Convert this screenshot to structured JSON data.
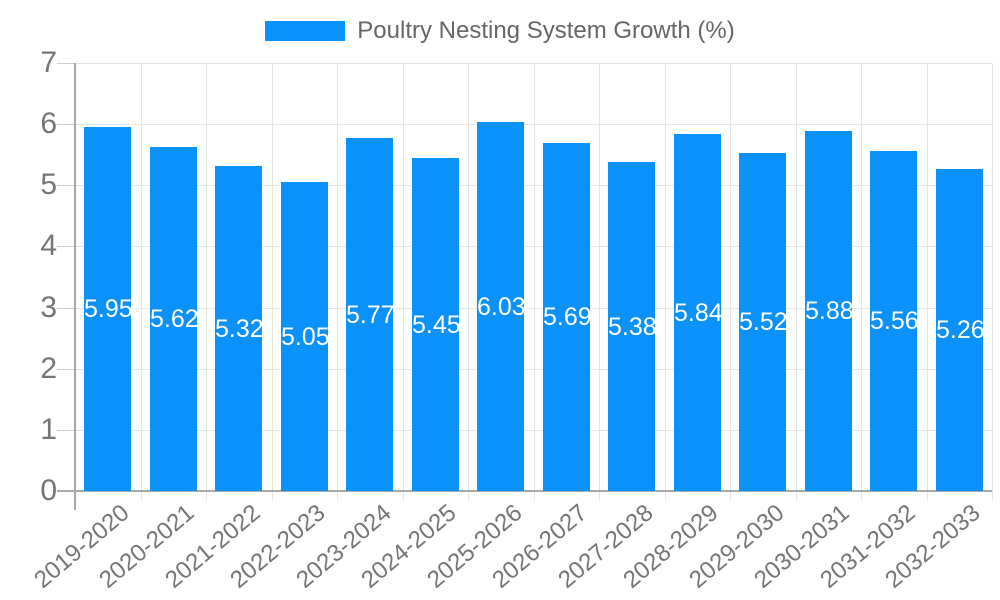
{
  "chart_data": {
    "type": "bar",
    "legend": {
      "label": "Poultry Nesting System Growth (%)",
      "position": "top"
    },
    "categories": [
      "2019-2020",
      "2020-2021",
      "2021-2022",
      "2022-2023",
      "2023-2024",
      "2024-2025",
      "2025-2026",
      "2026-2027",
      "2027-2028",
      "2028-2029",
      "2029-2030",
      "2030-2031",
      "2031-2032",
      "2032-2033"
    ],
    "values": [
      5.95,
      5.62,
      5.32,
      5.05,
      5.77,
      5.45,
      6.03,
      5.69,
      5.38,
      5.84,
      5.52,
      5.88,
      5.56,
      5.26
    ],
    "value_labels": [
      "5.95",
      "5.62",
      "5.32",
      "5.05",
      "5.77",
      "5.45",
      "6.03",
      "5.69",
      "5.38",
      "5.84",
      "5.52",
      "5.88",
      "5.56",
      "5.26"
    ],
    "ylim": [
      0,
      7
    ],
    "yticks": [
      "0",
      "1",
      "2",
      "3",
      "4",
      "5",
      "6",
      "7"
    ],
    "grid": true,
    "colors": {
      "bar": "#0a91fa",
      "value_label": "#ffffff",
      "axis_text": "#757575",
      "legend_text": "#666666",
      "gridline": "#e5e5e5",
      "axis_line": "#a8a8a8",
      "tick_stub": "#cccccc"
    }
  }
}
